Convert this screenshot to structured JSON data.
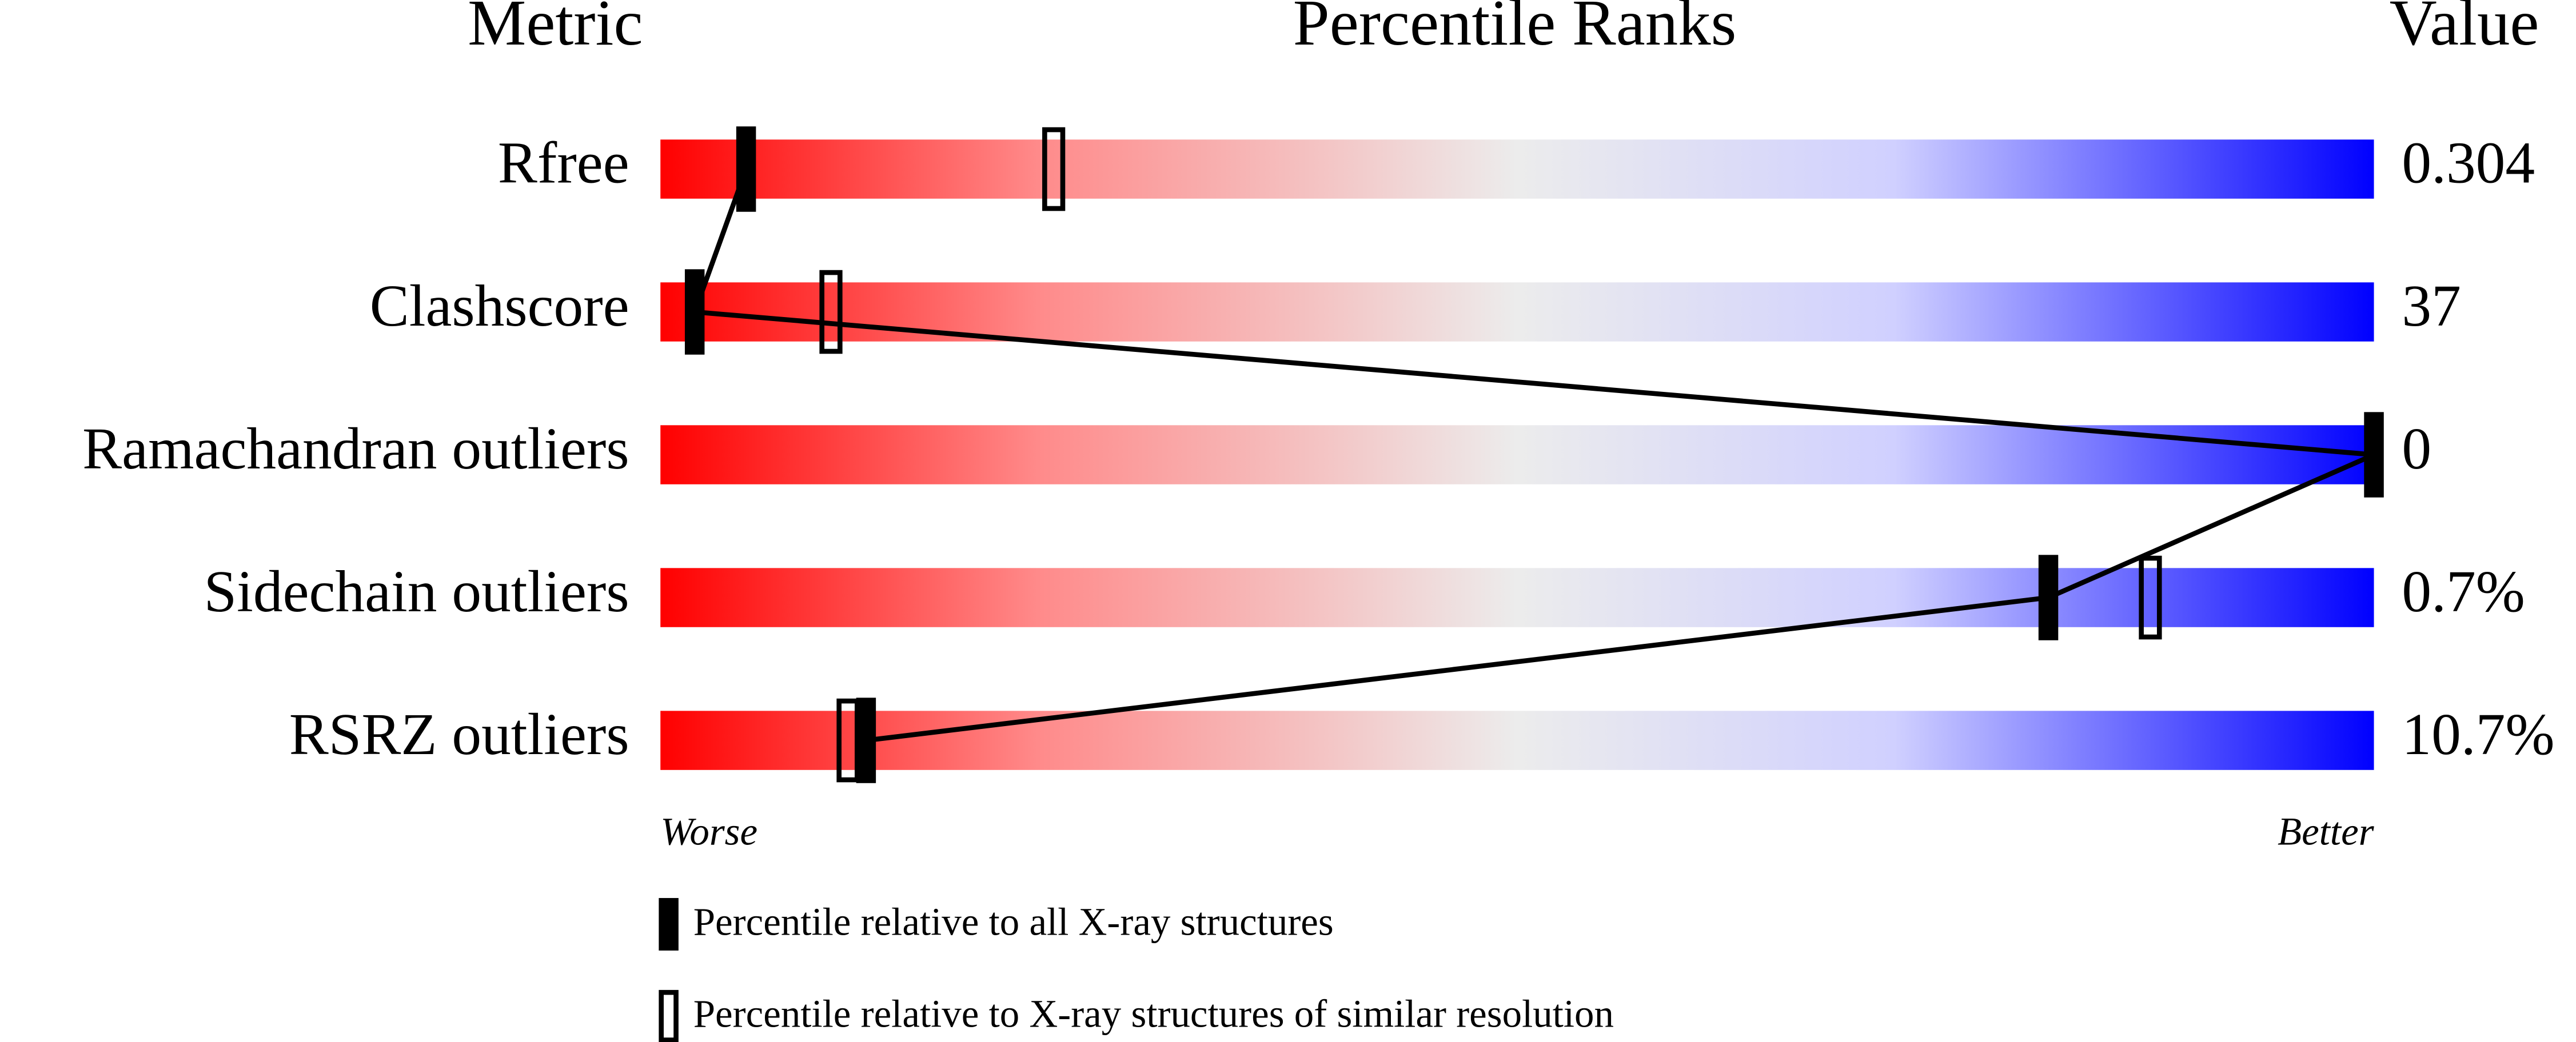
{
  "chart_data": {
    "type": "slider",
    "metric_header": "Metric",
    "title": "Percentile Ranks",
    "value_header": "Value",
    "categories": [
      "Rfree",
      "Clashscore",
      "Ramachandran outliers",
      "Sidechain outliers",
      "RSRZ outliers"
    ],
    "metric_values": [
      "0.304",
      "37",
      "0",
      "0.7%",
      "10.7%"
    ],
    "series": [
      {
        "name": "Percentile relative to all X-ray structures",
        "color": "#000000",
        "style": "filled",
        "values": [
          5,
          2,
          100,
          81,
          12
        ]
      },
      {
        "name": "Percentile relative to X-ray structures of similar resolution",
        "color": "#000000",
        "style": "hollow",
        "values": [
          23,
          10,
          null,
          87,
          11
        ]
      }
    ],
    "xlim": [
      0,
      100
    ],
    "low_label": "Worse",
    "high_label": "Better"
  }
}
